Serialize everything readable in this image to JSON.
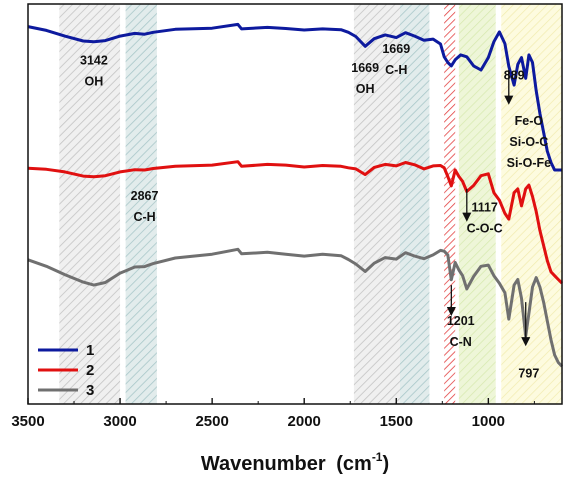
{
  "chart_data": {
    "type": "line",
    "xlabel": "Wavenumber",
    "xlabel_unit": "(cm",
    "xlabel_sup": "-1",
    "xlabel_close": ")",
    "x_reversed": true,
    "xlim": [
      3500,
      600
    ],
    "x_ticks": [
      3500,
      3000,
      2500,
      2000,
      1500,
      1000
    ],
    "y_ticks_shown": false,
    "grid": false,
    "legend_position": "bottom-left",
    "series": [
      {
        "name": "1",
        "color": "#0d1a9e",
        "x": [
          3500,
          3400,
          3300,
          3200,
          3142,
          3080,
          3000,
          2920,
          2867,
          2820,
          2700,
          2500,
          2360,
          2340,
          2200,
          2100,
          2000,
          1900,
          1800,
          1760,
          1720,
          1669,
          1620,
          1560,
          1500,
          1450,
          1400,
          1350,
          1300,
          1260,
          1240,
          1220,
          1201,
          1180,
          1150,
          1117,
          1080,
          1040,
          1000,
          970,
          940,
          910,
          889,
          860,
          840,
          820,
          797,
          780,
          760,
          740,
          720,
          700,
          680,
          660,
          640,
          620,
          600
        ],
        "y": [
          100,
          99,
          97.5,
          96.2,
          96,
          96.3,
          97.5,
          98.2,
          98,
          98.5,
          99.3,
          99.6,
          100.6,
          99.4,
          99.8,
          99.5,
          99.1,
          99.4,
          99.2,
          98.5,
          97.4,
          94.8,
          96.8,
          97.8,
          97.1,
          98.4,
          97.5,
          96.4,
          96.7,
          95.4,
          92,
          90.5,
          89.6,
          91.2,
          92.5,
          92,
          89.6,
          88.5,
          91.8,
          96,
          98.6,
          95.5,
          89.5,
          84.5,
          90,
          91.8,
          86.3,
          92.5,
          90.5,
          83,
          77,
          72,
          67,
          64,
          62,
          62,
          62
        ]
      },
      {
        "name": "2",
        "color": "#e01010",
        "x": [
          3500,
          3400,
          3300,
          3200,
          3142,
          3080,
          3000,
          2920,
          2867,
          2820,
          2700,
          2500,
          2360,
          2340,
          2200,
          2100,
          2000,
          1900,
          1800,
          1760,
          1720,
          1669,
          1620,
          1560,
          1500,
          1450,
          1400,
          1350,
          1300,
          1260,
          1240,
          1220,
          1201,
          1180,
          1160,
          1140,
          1117,
          1080,
          1040,
          1000,
          970,
          940,
          910,
          889,
          860,
          840,
          820,
          797,
          780,
          760,
          740,
          720,
          700,
          680,
          660,
          640,
          620,
          600
        ],
        "y": [
          62.5,
          62.2,
          61.5,
          60.4,
          60.2,
          60.5,
          61.5,
          62.1,
          62,
          62.4,
          63,
          63.3,
          64.2,
          63,
          63.5,
          63.3,
          62.8,
          63.2,
          63,
          62.6,
          62.3,
          60.8,
          62.7,
          63.5,
          63.1,
          64,
          63.4,
          62.3,
          63.1,
          63.2,
          62.6,
          60.3,
          57.8,
          62,
          60.3,
          59,
          56.3,
          57.9,
          60.5,
          61,
          56,
          54,
          50.5,
          49,
          56,
          57,
          52.5,
          57,
          58,
          55,
          51,
          46,
          42,
          38,
          35,
          34,
          33,
          32
        ]
      },
      {
        "name": "3",
        "color": "#707070",
        "x": [
          3500,
          3400,
          3300,
          3200,
          3142,
          3080,
          3000,
          2920,
          2867,
          2820,
          2700,
          2500,
          2360,
          2340,
          2200,
          2100,
          2000,
          1900,
          1800,
          1760,
          1720,
          1669,
          1620,
          1560,
          1500,
          1450,
          1400,
          1350,
          1300,
          1260,
          1240,
          1220,
          1201,
          1180,
          1160,
          1140,
          1117,
          1080,
          1040,
          1000,
          970,
          940,
          910,
          889,
          860,
          840,
          820,
          797,
          780,
          760,
          740,
          720,
          700,
          680,
          660,
          640,
          620,
          600
        ],
        "y": [
          38.2,
          36.5,
          34.3,
          32.3,
          31.5,
          32.2,
          34.7,
          36.3,
          36.4,
          37.2,
          38.7,
          39.7,
          41,
          39.8,
          40.2,
          39.7,
          39.2,
          39.7,
          39.3,
          38.3,
          37.1,
          35.1,
          37.3,
          38.8,
          38.4,
          40.1,
          39.2,
          38.5,
          39.5,
          40.7,
          40.5,
          39.5,
          32.9,
          37.5,
          35.5,
          34,
          30.5,
          33.8,
          36.5,
          36.8,
          34,
          32,
          29.5,
          22.5,
          31.5,
          33,
          28,
          18,
          24,
          31,
          33.5,
          31,
          27,
          22,
          17,
          13,
          11,
          10
        ]
      }
    ],
    "regions": [
      {
        "from": 3330,
        "to": 3000,
        "pattern": "hatch-gray"
      },
      {
        "from": 2970,
        "to": 2800,
        "pattern": "hatch-teal"
      },
      {
        "from": 1730,
        "to": 1480,
        "pattern": "hatch-gray"
      },
      {
        "from": 1480,
        "to": 1320,
        "pattern": "hatch-teal"
      },
      {
        "from": 1240,
        "to": 1180,
        "pattern": "hatch-red"
      },
      {
        "from": 1160,
        "to": 960,
        "pattern": "hatch-green"
      },
      {
        "from": 930,
        "to": 600,
        "pattern": "hatch-yellow"
      }
    ],
    "annotations": [
      {
        "lines": [
          "3142",
          "OH"
        ],
        "x": 3142,
        "y_top": 90
      },
      {
        "lines": [
          "2867",
          "C-H"
        ],
        "x": 2867,
        "y_top": 54
      },
      {
        "lines": [
          "1669",
          "OH"
        ],
        "x": 1669,
        "y_top": 88
      },
      {
        "lines": [
          "1669",
          "C-H"
        ],
        "x": 1500,
        "y_top": 93
      },
      {
        "lines": [
          "889"
        ],
        "x": 860,
        "y_top": 86
      },
      {
        "lines": [
          "Fe-O",
          "Si-O-C",
          "Si-O-Fe"
        ],
        "x": 780,
        "y_top": 74
      },
      {
        "lines": [
          "1117",
          "C-O-C"
        ],
        "x": 1020,
        "y_top": 51
      },
      {
        "lines": [
          "1201",
          "C-N"
        ],
        "x": 1150,
        "y_top": 21
      },
      {
        "lines": [
          "797"
        ],
        "x": 780,
        "y_top": 7
      }
    ],
    "arrows": [
      {
        "x": 889,
        "y_from": 88.5,
        "y_to": 80.5
      },
      {
        "x": 1117,
        "y_from": 57,
        "y_to": 49.5
      },
      {
        "x": 1201,
        "y_from": 31.5,
        "y_to": 24.5
      },
      {
        "x": 797,
        "y_from": 27,
        "y_to": 16.5
      }
    ]
  }
}
